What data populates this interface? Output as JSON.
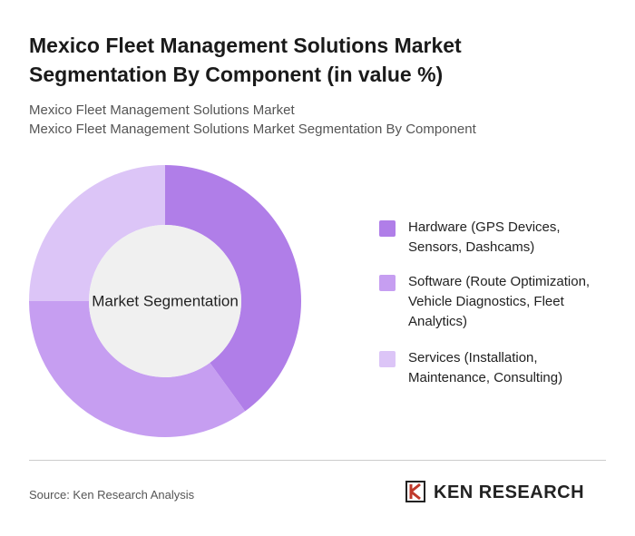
{
  "chart_data": {
    "type": "donut",
    "title": "Mexico Fleet Management Solutions Market Segmentation By Component (in value %)",
    "subtitles": [
      "Mexico Fleet Management Solutions Market",
      "Mexico Fleet Management Solutions Market Segmentation By Component"
    ],
    "center_label": "Market Segmentation",
    "categories": [
      "Hardware (GPS Devices, Sensors, Dashcams)",
      "Software (Route Optimization, Vehicle Diagnostics, Fleet Analytics)",
      "Services (Installation, Maintenance, Consulting)"
    ],
    "values": [
      40,
      35,
      25
    ],
    "colors": [
      "#b07ee8",
      "#c69ef1",
      "#dcc5f7"
    ],
    "legend": "right"
  },
  "footer": {
    "source": "Source: Ken Research Analysis",
    "brand": "KEN RESEARCH"
  }
}
